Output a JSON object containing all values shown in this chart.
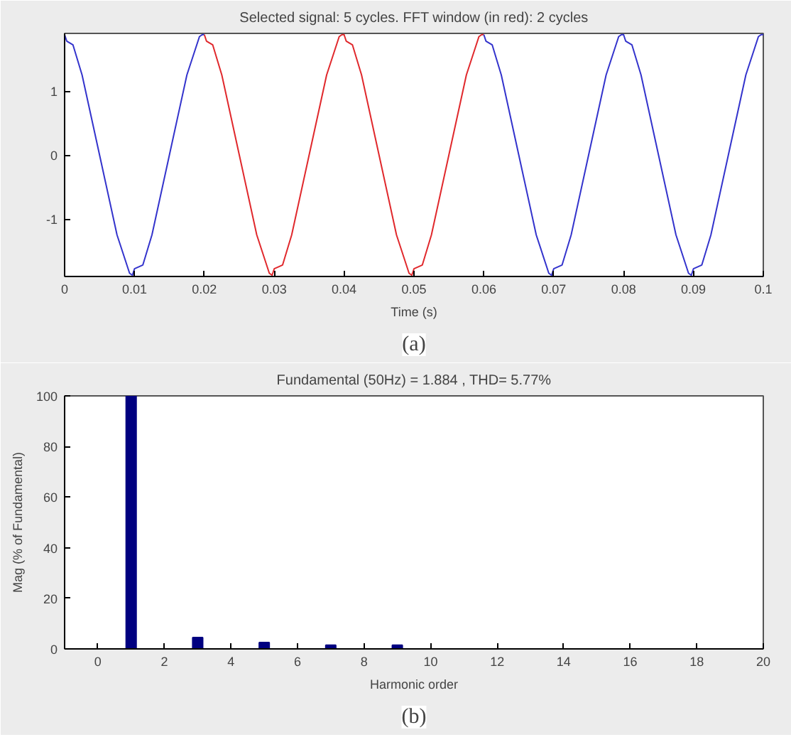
{
  "chart_data": [
    {
      "type": "line",
      "title": "Selected signal: 5 cycles. FFT window (in red): 2 cycles",
      "xlabel": "Time (s)",
      "annotations": [
        "(a)"
      ],
      "xlim": [
        0,
        0.1
      ],
      "xticks": [
        0,
        0.01,
        0.02,
        0.03,
        0.04,
        0.05,
        0.06,
        0.07,
        0.08,
        0.09,
        0.1
      ],
      "ylim": [
        -1.9,
        1.9
      ],
      "yticks": [
        -1,
        0,
        1
      ],
      "grid": false,
      "series": [
        {
          "color": "#3333cc",
          "x": [
            0,
            0.0003,
            0.0012,
            0.0025,
            0.005,
            0.0075,
            0.0093,
            0.0097,
            0.01,
            0.0112,
            0.0125,
            0.015,
            0.0175,
            0.0193,
            0.0197,
            0.02
          ],
          "values": [
            1.88,
            1.78,
            1.72,
            1.25,
            0,
            -1.25,
            -1.85,
            -1.88,
            -1.78,
            -1.72,
            -1.25,
            0,
            1.25,
            1.85,
            1.88,
            1.88
          ]
        },
        {
          "color": "#e0282c",
          "x": [
            0.02,
            0.0203,
            0.0212,
            0.0225,
            0.025,
            0.0275,
            0.0293,
            0.0297,
            0.03,
            0.0312,
            0.0325,
            0.035,
            0.0375,
            0.0393,
            0.0397,
            0.04,
            0.0403,
            0.0412,
            0.0425,
            0.045,
            0.0475,
            0.0493,
            0.0497,
            0.05,
            0.0512,
            0.0525,
            0.055,
            0.0575,
            0.0593,
            0.0597,
            0.06
          ],
          "values": [
            1.88,
            1.78,
            1.72,
            1.25,
            0,
            -1.25,
            -1.85,
            -1.88,
            -1.78,
            -1.72,
            -1.25,
            0,
            1.25,
            1.85,
            1.88,
            1.88,
            1.78,
            1.72,
            1.25,
            0,
            -1.25,
            -1.85,
            -1.88,
            -1.78,
            -1.72,
            -1.25,
            0,
            1.25,
            1.85,
            1.88,
            1.88
          ]
        },
        {
          "color": "#3333cc",
          "x": [
            0.06,
            0.0603,
            0.0612,
            0.0625,
            0.065,
            0.0675,
            0.0693,
            0.0697,
            0.07,
            0.0712,
            0.0725,
            0.075,
            0.0775,
            0.0793,
            0.0797,
            0.08,
            0.0803,
            0.0812,
            0.0825,
            0.085,
            0.0875,
            0.0893,
            0.0897,
            0.09,
            0.0912,
            0.0925,
            0.095,
            0.0975,
            0.0993,
            0.0997,
            0.1
          ],
          "values": [
            1.88,
            1.78,
            1.72,
            1.25,
            0,
            -1.25,
            -1.85,
            -1.88,
            -1.78,
            -1.72,
            -1.25,
            0,
            1.25,
            1.85,
            1.88,
            1.88,
            1.78,
            1.72,
            1.25,
            0,
            -1.25,
            -1.85,
            -1.88,
            -1.78,
            -1.72,
            -1.25,
            0,
            1.25,
            1.85,
            1.88,
            1.88
          ]
        }
      ]
    },
    {
      "type": "bar",
      "title": "Fundamental (50Hz) = 1.884 , THD= 5.77%",
      "xlabel": "Harmonic order",
      "ylabel": "Mag (% of Fundamental)",
      "annotations": [
        "(b)"
      ],
      "xlim": [
        -1,
        20
      ],
      "xticks": [
        0,
        2,
        4,
        6,
        8,
        10,
        12,
        14,
        16,
        18,
        20
      ],
      "ylim": [
        0,
        100
      ],
      "yticks": [
        0,
        20,
        40,
        60,
        80,
        100
      ],
      "grid": false,
      "x": [
        0,
        1,
        2,
        3,
        4,
        5,
        6,
        7,
        8,
        9,
        10,
        11,
        12,
        13,
        14,
        15,
        16,
        17,
        18,
        19,
        20
      ],
      "series": [
        {
          "color": "#000080",
          "values": [
            0,
            100,
            0,
            4.5,
            0,
            2.5,
            0,
            1.5,
            0,
            1.5,
            0,
            0,
            0,
            0,
            0,
            0,
            0,
            0,
            0,
            0,
            0
          ]
        }
      ]
    }
  ]
}
